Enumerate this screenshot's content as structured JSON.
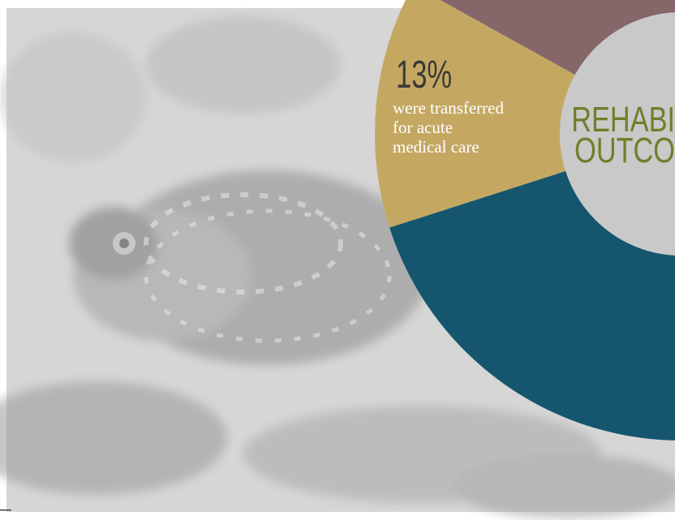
{
  "chart_data": {
    "type": "donut",
    "title_lines": [
      "REHABI",
      "OUTCO"
    ],
    "categories": [
      null,
      "were transferred for acute medical care",
      null
    ],
    "values": [
      32,
      13,
      55
    ],
    "value_labels": [
      null,
      "13%",
      null
    ],
    "colors": [
      "#85676a",
      "#c4a862",
      "#15566e"
    ]
  }
}
